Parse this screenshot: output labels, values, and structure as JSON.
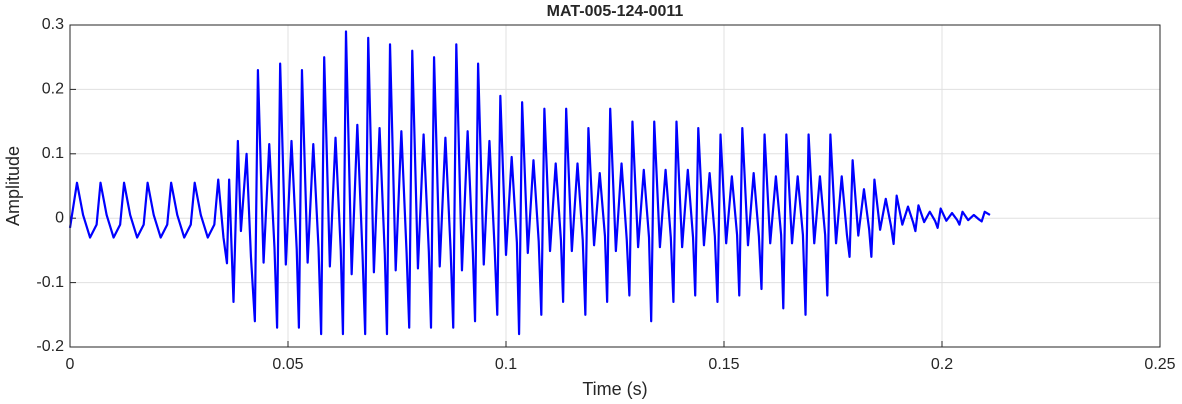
{
  "chart_data": {
    "type": "line",
    "title": "MAT-005-124-0011",
    "xlabel": "Time (s)",
    "ylabel": "Amplitude",
    "xlim": [
      0,
      0.25
    ],
    "xticks": [
      0,
      0.05,
      0.1,
      0.15,
      0.2,
      0.25
    ],
    "ylim": [
      -0.2,
      0.3
    ],
    "yticks": [
      -0.2,
      -0.1,
      0,
      0.1,
      0.2,
      0.3
    ],
    "grid": true,
    "color": "#0000ff",
    "x": [
      0,
      0.0016,
      0.003,
      0.0046,
      0.0061,
      0.007,
      0.0084,
      0.01,
      0.0115,
      0.0124,
      0.0138,
      0.0154,
      0.0169,
      0.0178,
      0.0192,
      0.0208,
      0.0223,
      0.0232,
      0.0246,
      0.0262,
      0.0277,
      0.0286,
      0.03,
      0.0316,
      0.0331,
      0.034,
      0.0352,
      0.036,
      0.0365,
      0.0375,
      0.0385,
      0.0392,
      0.0405,
      0.0415,
      0.0424,
      0.0431,
      0.0444,
      0.0457,
      0.0469,
      0.0475,
      0.0482,
      0.0495,
      0.0508,
      0.052,
      0.0525,
      0.0532,
      0.0545,
      0.0558,
      0.057,
      0.0576,
      0.0583,
      0.0596,
      0.0609,
      0.0621,
      0.0626,
      0.0633,
      0.0646,
      0.0659,
      0.0671,
      0.0677,
      0.0684,
      0.0697,
      0.071,
      0.0722,
      0.0727,
      0.0734,
      0.0747,
      0.076,
      0.0772,
      0.0778,
      0.0785,
      0.0798,
      0.0811,
      0.0823,
      0.0828,
      0.0835,
      0.0848,
      0.0861,
      0.0873,
      0.0879,
      0.0886,
      0.0899,
      0.0912,
      0.0924,
      0.0929,
      0.0936,
      0.0949,
      0.0962,
      0.0974,
      0.098,
      0.0987,
      0.1,
      0.1013,
      0.1025,
      0.103,
      0.1037,
      0.105,
      0.1063,
      0.1075,
      0.1081,
      0.1088,
      0.1101,
      0.1114,
      0.1126,
      0.1131,
      0.1138,
      0.1151,
      0.1164,
      0.1176,
      0.1182,
      0.1189,
      0.1202,
      0.1215,
      0.1227,
      0.1232,
      0.1239,
      0.1252,
      0.1265,
      0.1277,
      0.1283,
      0.129,
      0.1303,
      0.1316,
      0.1328,
      0.1333,
      0.134,
      0.1353,
      0.1366,
      0.1378,
      0.1384,
      0.1391,
      0.1404,
      0.1417,
      0.1429,
      0.1434,
      0.1441,
      0.1454,
      0.1467,
      0.1479,
      0.1485,
      0.1492,
      0.1505,
      0.1518,
      0.153,
      0.1535,
      0.1542,
      0.1555,
      0.1568,
      0.158,
      0.1586,
      0.1593,
      0.1606,
      0.1619,
      0.1631,
      0.1636,
      0.1643,
      0.1656,
      0.1669,
      0.1681,
      0.1687,
      0.1694,
      0.1707,
      0.172,
      0.1732,
      0.1737,
      0.1744,
      0.1757,
      0.177,
      0.1782,
      0.1788,
      0.1795,
      0.1808,
      0.1821,
      0.1833,
      0.1838,
      0.1845,
      0.1858,
      0.1871,
      0.1883,
      0.1889,
      0.1896,
      0.1909,
      0.1922,
      0.1934,
      0.1939,
      0.1946,
      0.1959,
      0.1972,
      0.1984,
      0.199,
      0.1997,
      0.201,
      0.2023,
      0.2035,
      0.204,
      0.2047,
      0.206,
      0.2073,
      0.2085,
      0.2091,
      0.2098,
      0.211
    ],
    "values": [
      -0.015,
      0.055,
      0.005,
      -0.03,
      -0.01,
      0.055,
      0.005,
      -0.03,
      -0.01,
      0.055,
      0.005,
      -0.03,
      -0.01,
      0.055,
      0.005,
      -0.03,
      -0.01,
      0.055,
      0.005,
      -0.03,
      -0.01,
      0.055,
      0.005,
      -0.03,
      -0.01,
      0.06,
      -0.03,
      -0.07,
      0.06,
      -0.13,
      0.12,
      -0.02,
      0.1,
      -0.06,
      -0.16,
      0.23,
      -0.069,
      0.115,
      -0.046,
      -0.17,
      0.24,
      -0.072,
      0.12,
      -0.048,
      -0.17,
      0.23,
      -0.069,
      0.115,
      -0.046,
      -0.18,
      0.25,
      -0.075,
      0.125,
      -0.05,
      -0.18,
      0.29,
      -0.087,
      0.145,
      -0.058,
      -0.18,
      0.28,
      -0.084,
      0.14,
      -0.056,
      -0.18,
      0.27,
      -0.081,
      0.135,
      -0.054,
      -0.17,
      0.26,
      -0.078,
      0.13,
      -0.052,
      -0.17,
      0.25,
      -0.075,
      0.125,
      -0.05,
      -0.17,
      0.27,
      -0.081,
      0.135,
      -0.054,
      -0.16,
      0.24,
      -0.072,
      0.12,
      -0.048,
      -0.15,
      0.19,
      -0.057,
      0.095,
      -0.038,
      -0.18,
      0.18,
      -0.054,
      0.09,
      -0.036,
      -0.15,
      0.17,
      -0.051,
      0.085,
      -0.034,
      -0.13,
      0.17,
      -0.051,
      0.085,
      -0.034,
      -0.15,
      0.14,
      -0.042,
      0.07,
      -0.028,
      -0.13,
      0.17,
      -0.051,
      0.085,
      -0.034,
      -0.12,
      0.15,
      -0.045,
      0.075,
      -0.03,
      -0.16,
      0.15,
      -0.045,
      0.075,
      -0.03,
      -0.13,
      0.15,
      -0.045,
      0.075,
      -0.03,
      -0.12,
      0.14,
      -0.042,
      0.07,
      -0.028,
      -0.13,
      0.13,
      -0.039,
      0.065,
      -0.026,
      -0.12,
      0.14,
      -0.042,
      0.07,
      -0.028,
      -0.11,
      0.13,
      -0.039,
      0.065,
      -0.026,
      -0.14,
      0.13,
      -0.039,
      0.065,
      -0.026,
      -0.15,
      0.13,
      -0.039,
      0.065,
      -0.026,
      -0.12,
      0.13,
      -0.039,
      0.065,
      -0.026,
      -0.06,
      0.09,
      -0.027,
      0.045,
      -0.018,
      -0.06,
      0.06,
      -0.018,
      0.03,
      -0.012,
      -0.04,
      0.035,
      -0.01,
      0.018,
      -0.007,
      -0.02,
      0.02,
      -0.006,
      0.01,
      -0.004,
      -0.015,
      0.015,
      -0.004,
      0.008,
      -0.003,
      -0.01,
      0.01,
      -0.003,
      0.005,
      -0.002,
      -0.005,
      0.01,
      0.005
    ]
  }
}
